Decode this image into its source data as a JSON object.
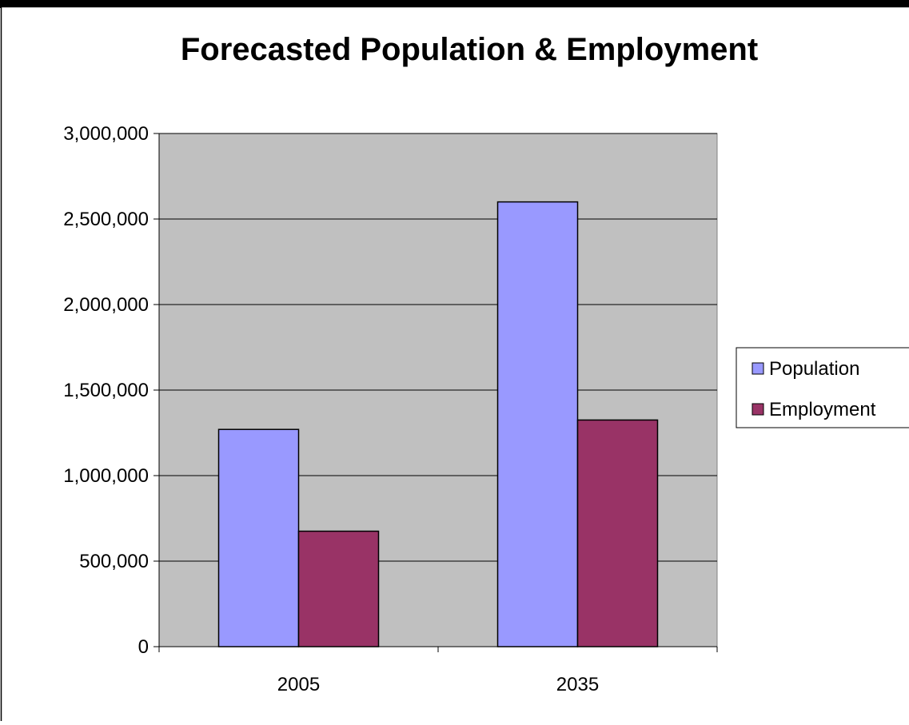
{
  "chart_data": {
    "type": "bar",
    "title": "Forecasted Population & Employment",
    "categories": [
      "2005",
      "2035"
    ],
    "series": [
      {
        "name": "Population",
        "values": [
          1270000,
          2600000
        ],
        "color": "#9999ff"
      },
      {
        "name": "Employment",
        "values": [
          675000,
          1325000
        ],
        "color": "#993366"
      }
    ],
    "ylim": [
      0,
      3000000
    ],
    "yticks": [
      0,
      500000,
      1000000,
      1500000,
      2000000,
      2500000,
      3000000
    ],
    "ytick_labels": [
      "0",
      "500,000",
      "1,000,000",
      "1,500,000",
      "2,000,000",
      "2,500,000",
      "3,000,000"
    ],
    "grid": true,
    "plot_background": "#c0c0c0",
    "legend": {
      "position": "right"
    }
  }
}
